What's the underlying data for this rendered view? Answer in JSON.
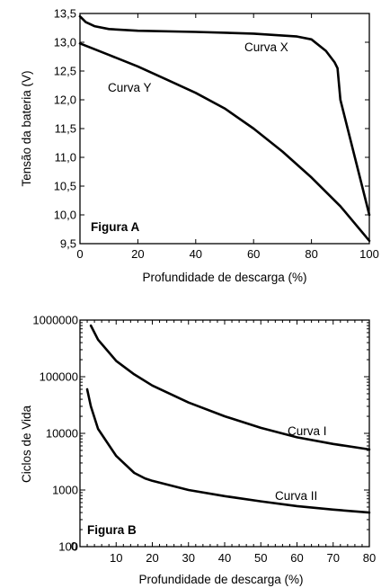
{
  "chart_data": [
    {
      "type": "line",
      "panel_label": "Figura A",
      "xlabel": "Profundidade de descarga (%)",
      "ylabel": "Tensão da bateria (V)",
      "xlim": [
        0,
        100
      ],
      "ylim": [
        9.5,
        13.5
      ],
      "x_ticks": [
        "0",
        "20",
        "40",
        "60",
        "80",
        "100"
      ],
      "y_ticks": [
        "9,5",
        "10,0",
        "10,5",
        "11,0",
        "11,5",
        "12,0",
        "12,5",
        "13,0",
        "13,5"
      ],
      "y_scale": "linear",
      "grid": false,
      "series": [
        {
          "name": "Curva X",
          "x": [
            0,
            2,
            5,
            10,
            20,
            40,
            60,
            75,
            80,
            85,
            88,
            89,
            90,
            95,
            100
          ],
          "y": [
            13.45,
            13.35,
            13.28,
            13.23,
            13.2,
            13.18,
            13.15,
            13.1,
            13.05,
            12.85,
            12.65,
            12.55,
            12.0,
            11.0,
            10.0
          ]
        },
        {
          "name": "Curva Y",
          "x": [
            0,
            10,
            20,
            30,
            40,
            50,
            60,
            70,
            80,
            90,
            100
          ],
          "y": [
            12.98,
            12.78,
            12.58,
            12.35,
            12.12,
            11.85,
            11.5,
            11.1,
            10.65,
            10.15,
            9.55
          ]
        }
      ]
    },
    {
      "type": "line",
      "panel_label": "Figura B",
      "xlabel": "Profundidade de descarga (%)",
      "ylabel": "Ciclos de Vida",
      "xlim": [
        0,
        80
      ],
      "ylim": [
        100,
        1000000
      ],
      "x_ticks": [
        "10",
        "20",
        "30",
        "40",
        "50",
        "60",
        "70",
        "80"
      ],
      "x_tick_zero_label": "0",
      "y_ticks": [
        "100",
        "1000",
        "10000",
        "100000",
        "1000000"
      ],
      "y_scale": "log",
      "grid": false,
      "series": [
        {
          "name": "Curva I",
          "x": [
            3,
            5,
            10,
            15,
            20,
            30,
            40,
            50,
            60,
            70,
            80
          ],
          "y": [
            800000,
            450000,
            190000,
            110000,
            70000,
            35000,
            20000,
            12500,
            8500,
            6500,
            5200
          ]
        },
        {
          "name": "Curva II",
          "x": [
            2,
            3,
            5,
            10,
            15,
            18,
            20,
            30,
            40,
            50,
            60,
            70,
            80
          ],
          "y": [
            60000,
            30000,
            12000,
            4000,
            2000,
            1600,
            1450,
            1000,
            780,
            630,
            520,
            450,
            400
          ]
        }
      ]
    }
  ]
}
